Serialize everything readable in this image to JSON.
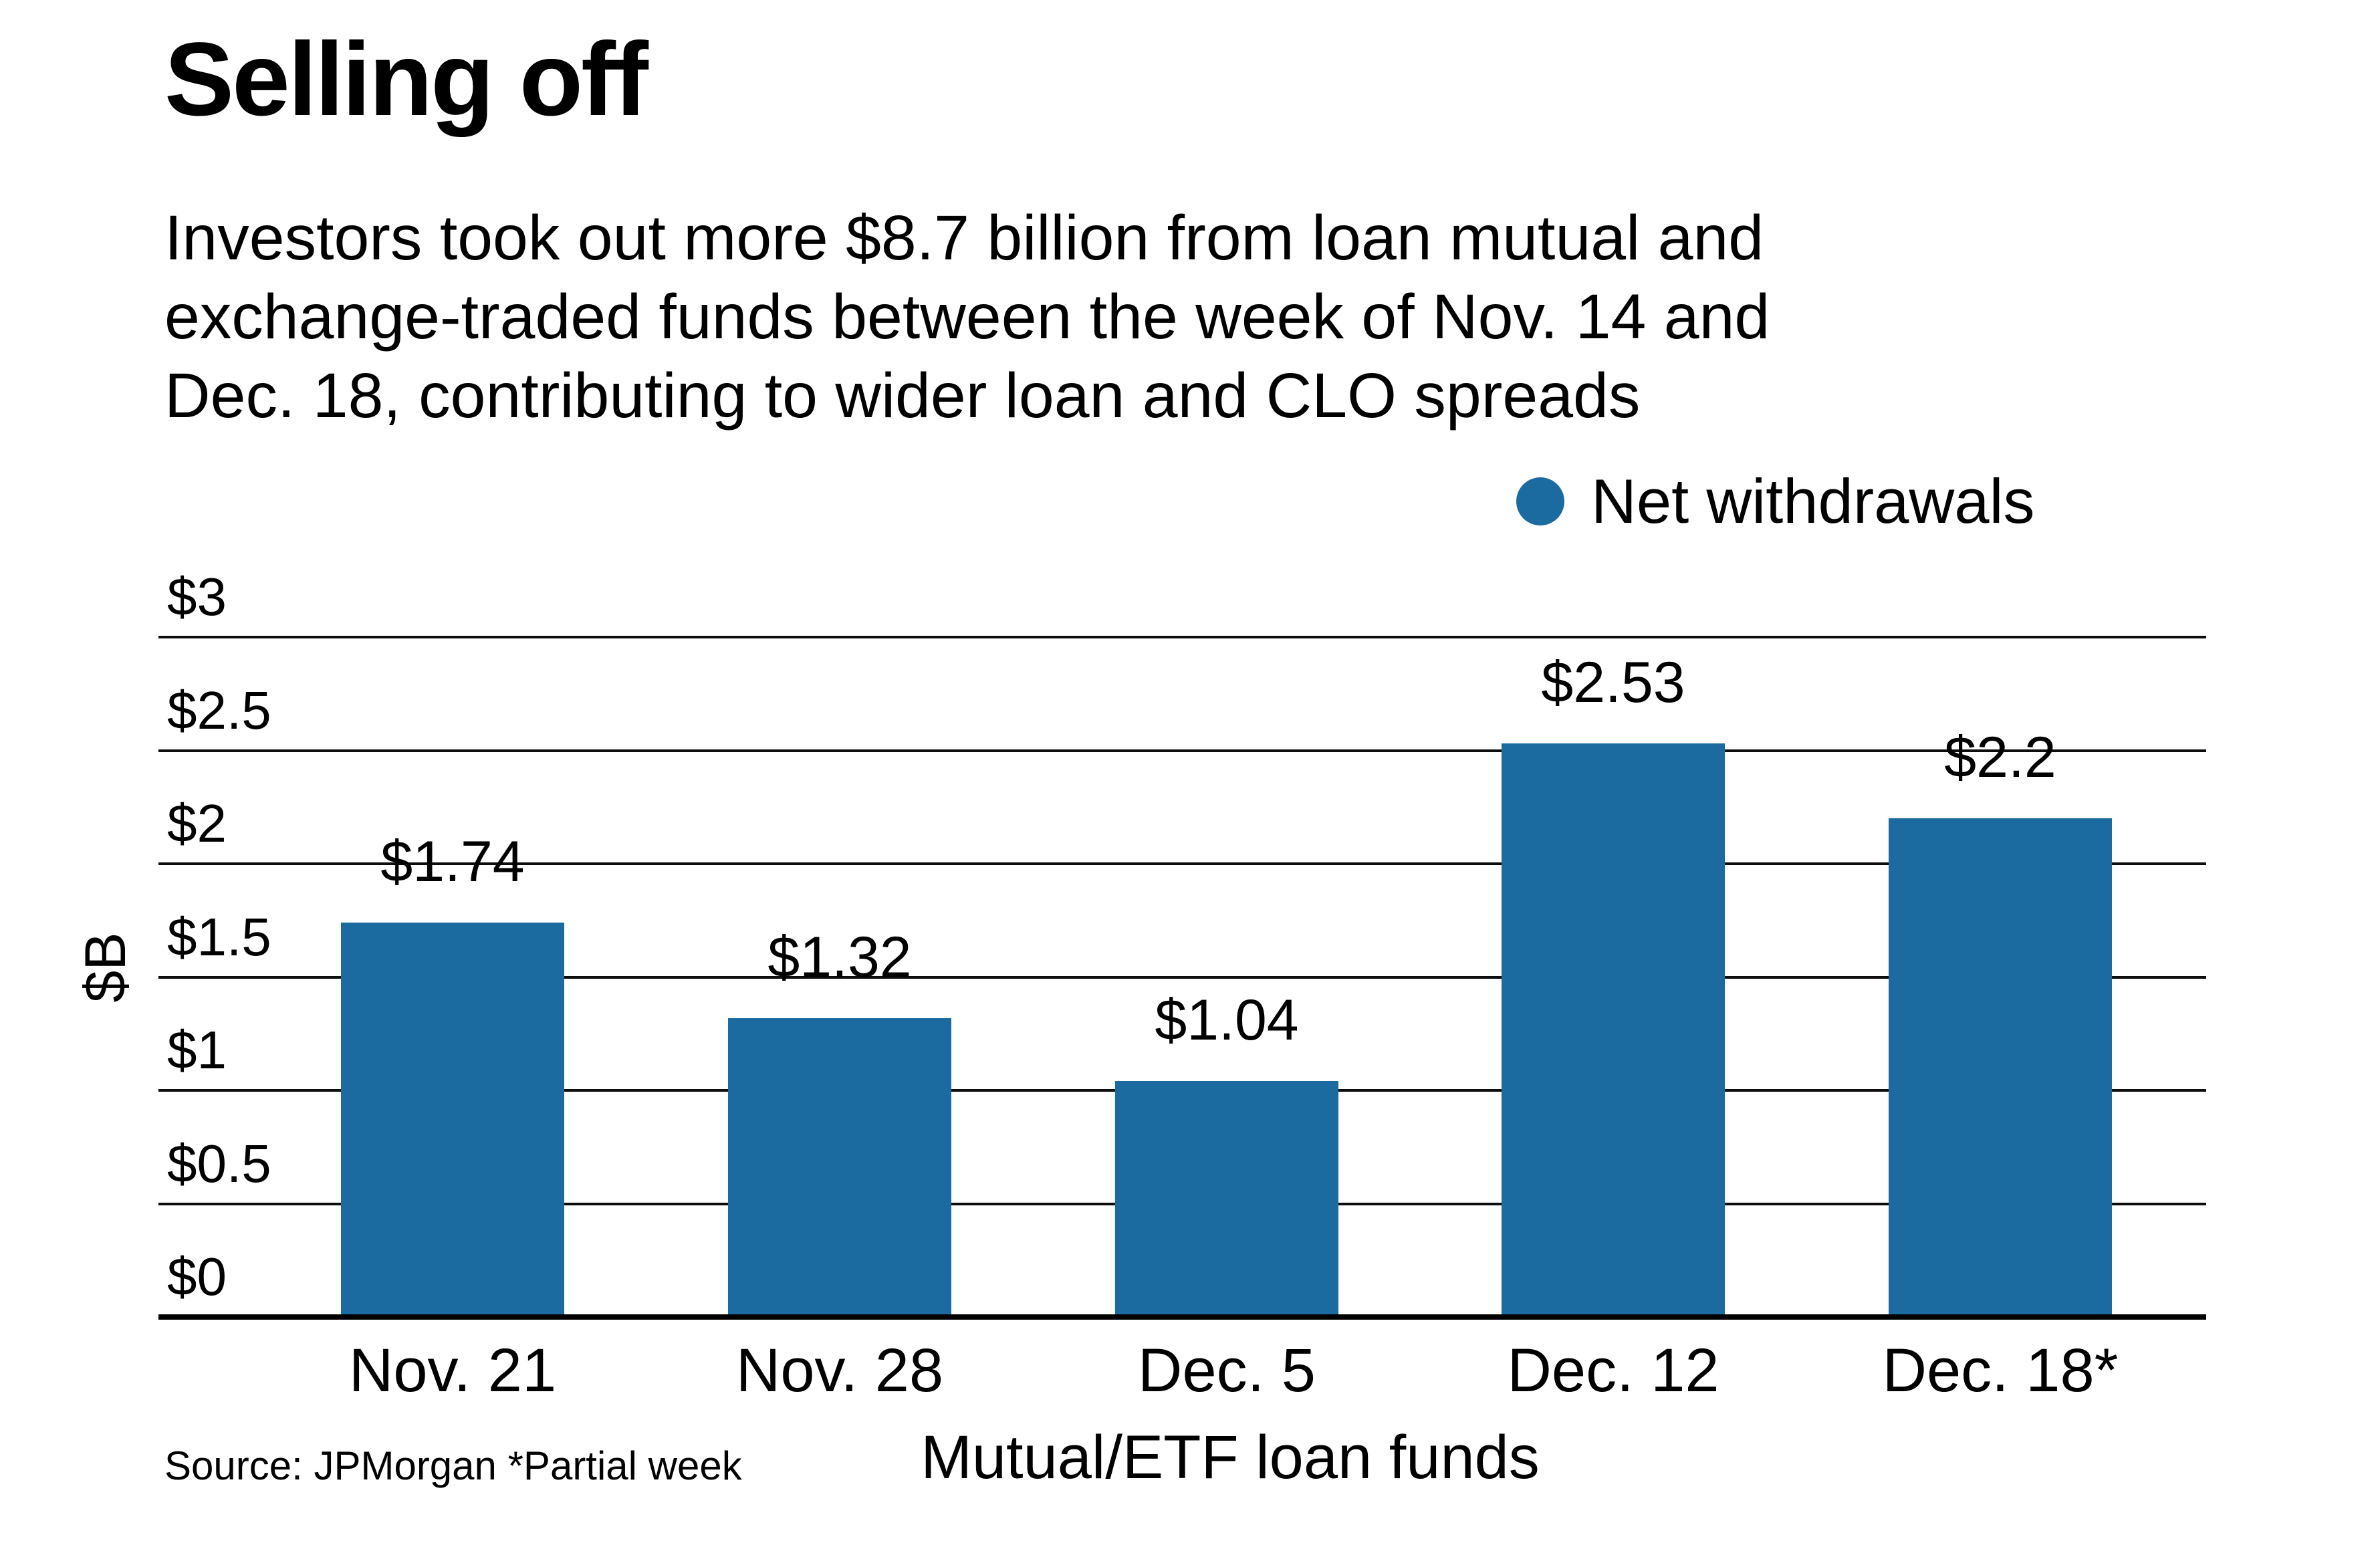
{
  "header": {
    "title": "Selling off",
    "subtitle_lines": [
      "Investors took out more $8.7 billion from loan mutual and",
      "exchange-traded funds between the week of Nov. 14 and",
      "Dec. 18, contributing to wider loan and CLO spreads"
    ]
  },
  "legend": {
    "label": "Net withdrawals",
    "marker_color": "#1c6ba0"
  },
  "chart_data": {
    "type": "bar",
    "title": "Selling off",
    "series_name": "Net withdrawals",
    "categories": [
      "Nov. 21",
      "Nov. 28",
      "Dec. 5",
      "Dec. 12",
      "Dec. 18*"
    ],
    "values": [
      1.74,
      1.32,
      1.04,
      2.53,
      2.2
    ],
    "value_labels": [
      "$1.74",
      "$1.32",
      "$1.04",
      "$2.53",
      "$2.2"
    ],
    "xlabel": "Mutual/ETF loan funds",
    "ylabel": "$B",
    "ylim": [
      0,
      3
    ],
    "yticks": [
      0,
      0.5,
      1,
      1.5,
      2,
      2.5,
      3
    ],
    "ytick_labels": [
      "$0",
      "$0.5",
      "$1",
      "$1.5",
      "$2",
      "$2.5",
      "$3"
    ],
    "grid": true,
    "legend_position": "top-right",
    "bar_color": "#1c6ba0",
    "gridline_color": "#0d0d0d"
  },
  "footer": {
    "source": "Source: JPMorgan *Partial week"
  }
}
